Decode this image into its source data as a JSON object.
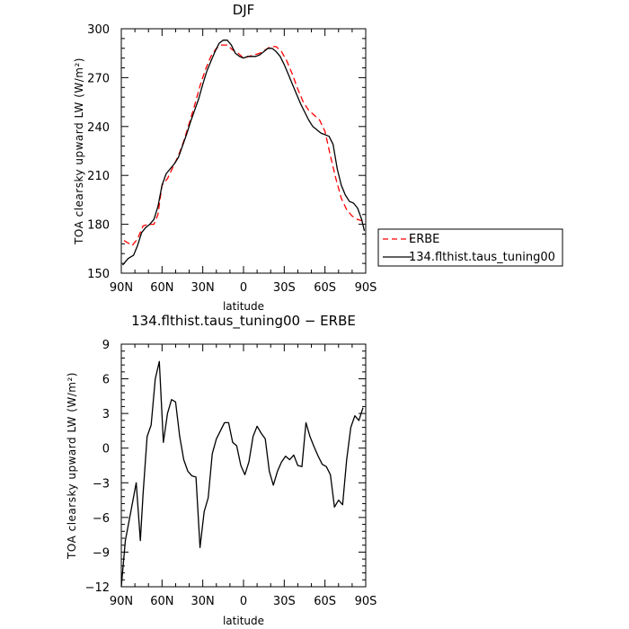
{
  "chart_data": [
    {
      "type": "line",
      "title": "DJF",
      "xlabel": "latitude",
      "ylabel": "TOA clearsky upward LW (W/m²)",
      "xlim": [
        90,
        -90
      ],
      "ylim": [
        150,
        300
      ],
      "x_ticks": [
        90,
        60,
        30,
        0,
        -30,
        -60,
        -90
      ],
      "x_tick_labels": [
        "90N",
        "60N",
        "30N",
        "0",
        "30S",
        "60S",
        "90S"
      ],
      "y_ticks": [
        150,
        180,
        210,
        240,
        270,
        300
      ],
      "y_tick_labels": [
        "150",
        "180",
        "210",
        "240",
        "270",
        "300"
      ],
      "grid": false,
      "legend_position": "right",
      "series": [
        {
          "name": "ERBE",
          "color": "#ff0000",
          "dash": "dashed",
          "x": [
            88,
            82,
            78,
            74,
            70,
            66,
            63,
            60,
            56,
            52,
            48,
            44,
            40,
            36,
            32,
            28,
            24,
            20,
            16,
            12,
            8,
            4,
            0,
            -4,
            -8,
            -12,
            -16,
            -20,
            -24,
            -28,
            -32,
            -36,
            -40,
            -44,
            -48,
            -52,
            -56,
            -60,
            -64,
            -68,
            -72,
            -76,
            -80,
            -84,
            -88
          ],
          "values": [
            170,
            167,
            171,
            179,
            180,
            180,
            186,
            204,
            208,
            215,
            222,
            231,
            242,
            253,
            265,
            275,
            283,
            288,
            290,
            290,
            287,
            285,
            282,
            283,
            284,
            285,
            287,
            289,
            289,
            286,
            280,
            272,
            263,
            255,
            250,
            247,
            244,
            237,
            222,
            208,
            196,
            189,
            185,
            183,
            182
          ]
        },
        {
          "name": "134.flthist.taus_tuning00",
          "color": "#000000",
          "dash": "solid",
          "x": [
            89,
            85,
            81,
            78,
            75,
            72,
            69,
            66,
            63,
            60,
            57,
            54,
            51,
            48,
            45,
            42,
            39,
            36,
            33,
            30,
            27,
            24,
            21,
            18,
            15,
            12,
            9,
            6,
            3,
            0,
            -3,
            -6,
            -9,
            -12,
            -15,
            -18,
            -21,
            -24,
            -27,
            -30,
            -33,
            -36,
            -39,
            -42,
            -45,
            -48,
            -51,
            -54,
            -57,
            -60,
            -63,
            -66,
            -69,
            -72,
            -75,
            -78,
            -81,
            -84,
            -87,
            -89
          ],
          "values": [
            155,
            159,
            161,
            167,
            175,
            178,
            180,
            183,
            191,
            204,
            211,
            214,
            217,
            221,
            228,
            235,
            243,
            250,
            257,
            266,
            274,
            280,
            286,
            291,
            293,
            293,
            290,
            285,
            283,
            282,
            283,
            283,
            283,
            284,
            286,
            288,
            288,
            286,
            283,
            278,
            272,
            266,
            260,
            254,
            249,
            244,
            240,
            238,
            236,
            235,
            234,
            229,
            214,
            204,
            198,
            194,
            193,
            190,
            183,
            176
          ]
        }
      ]
    },
    {
      "type": "line",
      "title": "134.flthist.taus_tuning00 − ERBE",
      "xlabel": "latitude",
      "ylabel": "TOA clearsky upward LW (W/m²)",
      "xlim": [
        90,
        -90
      ],
      "ylim": [
        -12,
        9
      ],
      "x_ticks": [
        90,
        60,
        30,
        0,
        -30,
        -60,
        -90
      ],
      "x_tick_labels": [
        "90N",
        "60N",
        "30N",
        "0",
        "30S",
        "60S",
        "90S"
      ],
      "y_ticks": [
        -12,
        -9,
        -6,
        -3,
        0,
        3,
        6,
        9
      ],
      "y_tick_labels": [
        "−12",
        "−9",
        "−6",
        "−3",
        "0",
        "3",
        "6",
        "9"
      ],
      "grid": false,
      "series": [
        {
          "color": "#000000",
          "dash": "solid",
          "x": [
            90,
            87,
            83,
            79,
            76,
            74,
            71,
            68,
            65,
            62,
            59,
            56,
            53,
            50,
            47,
            44,
            41,
            38,
            35,
            32,
            29,
            26,
            23,
            20,
            17,
            14,
            11,
            8,
            5,
            2,
            -1,
            -4,
            -7,
            -10,
            -13,
            -16,
            -19,
            -22,
            -25,
            -28,
            -31,
            -34,
            -37,
            -40,
            -43,
            -46,
            -49,
            -52,
            -55,
            -58,
            -61,
            -64,
            -67,
            -70,
            -73,
            -76,
            -79,
            -82,
            -85,
            -88
          ],
          "values": [
            -12,
            -8,
            -5.5,
            -3,
            -8,
            -4,
            1,
            2,
            6,
            7.5,
            0.5,
            3,
            4.2,
            4,
            1,
            -1,
            -2,
            -2.4,
            -2.5,
            -8.6,
            -5.5,
            -4.3,
            -0.5,
            0.8,
            1.5,
            2.2,
            2.2,
            0.5,
            0.2,
            -1.5,
            -2.3,
            -1.2,
            1,
            1.9,
            1.3,
            0.8,
            -2,
            -3.2,
            -2,
            -1.2,
            -0.7,
            -1,
            -0.6,
            -1.5,
            -1.6,
            2.2,
            1,
            0.1,
            -0.7,
            -1.4,
            -1.6,
            -2.3,
            -5.1,
            -4.5,
            -4.9,
            -1,
            1.8,
            2.8,
            2.4,
            3.5
          ]
        }
      ]
    }
  ]
}
